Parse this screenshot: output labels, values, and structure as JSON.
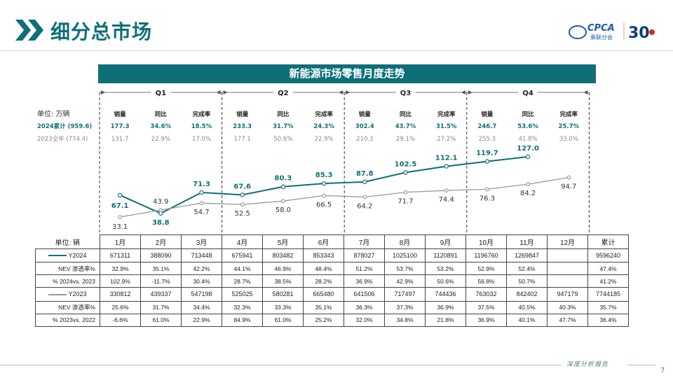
{
  "header": {
    "title": "细分总市场",
    "logo_text": "CPCA",
    "logo_subtext": "乘联分会",
    "anniversary": "30",
    "accent_color": "#0f6f78"
  },
  "chart_data": {
    "type": "line",
    "title": "新能源市场零售月度走势",
    "unit_label": "单位: 万辆",
    "categories": [
      "1月",
      "2月",
      "3月",
      "4月",
      "5月",
      "6月",
      "7月",
      "8月",
      "9月",
      "10月",
      "11月",
      "12月"
    ],
    "quarters": [
      "Q1",
      "Q2",
      "Q3",
      "Q4"
    ],
    "series": [
      {
        "name": "Y2024",
        "color": "#0f6f78",
        "values": [
          67.1,
          38.8,
          71.3,
          67.6,
          80.3,
          85.3,
          87.8,
          102.5,
          112.1,
          119.7,
          127.0,
          null
        ],
        "label_strings": [
          "67.1",
          "38.8",
          "71.3",
          "67.6",
          "80.3",
          "85.3",
          "87.8",
          "102.5",
          "112.1",
          "119.7",
          "127.0",
          ""
        ]
      },
      {
        "name": "Y2023",
        "color": "#9a9a9a",
        "values": [
          33.1,
          43.9,
          54.7,
          52.5,
          58.0,
          66.5,
          64.2,
          71.7,
          74.4,
          76.3,
          84.2,
          94.7
        ],
        "label_strings": [
          "33.1",
          "43.9",
          "54.7",
          "52.5",
          "58.0",
          "66.5",
          "64.2",
          "71.7",
          "74.4",
          "76.3",
          "84.2",
          "94.7"
        ]
      }
    ],
    "ylim": [
      20,
      140
    ],
    "grid": false,
    "quarter_stats": {
      "headers": [
        "销量",
        "同比",
        "完成率"
      ],
      "row_2024": {
        "label": "2024累计 (959.6)",
        "values": [
          [
            "177.3",
            "34.6%",
            "18.5%"
          ],
          [
            "233.3",
            "31.7%",
            "24.3%"
          ],
          [
            "302.4",
            "43.7%",
            "31.5%"
          ],
          [
            "246.7",
            "53.6%",
            "25.7%"
          ]
        ]
      },
      "row_2023": {
        "label": "2023全年 (774.4)",
        "values": [
          [
            "131.7",
            "22.9%",
            "17.0%"
          ],
          [
            "177.1",
            "50.6%",
            "22.9%"
          ],
          [
            "210.3",
            "29.1%",
            "27.2%"
          ],
          [
            "255.3",
            "41.8%",
            "33.0%"
          ]
        ]
      }
    }
  },
  "table": {
    "unit_label": "单位: 辆",
    "columns": [
      "1月",
      "2月",
      "3月",
      "4月",
      "5月",
      "6月",
      "7月",
      "8月",
      "9月",
      "10月",
      "11月",
      "12月",
      "累计"
    ],
    "groups": [
      {
        "series_label": "Y2024",
        "rows": [
          {
            "label": "",
            "cells": [
              "671311",
              "388090",
              "713448",
              "675941",
              "803482",
              "853343",
              "878027",
              "1025100",
              "1120891",
              "1196760",
              "1269847",
              "",
              "9596240"
            ]
          },
          {
            "label": "NEV 渗透率%",
            "cells": [
              "32.9%",
              "35.1%",
              "42.2%",
              "44.1%",
              "46.9%",
              "48.4%",
              "51.2%",
              "53.7%",
              "53.2%",
              "52.9%",
              "52.4%",
              "",
              "47.4%"
            ]
          },
          {
            "label": "% 2024vs. 2023",
            "cells": [
              "102.9%",
              "-11.7%",
              "30.4%",
              "28.7%",
              "38.5%",
              "28.2%",
              "36.9%",
              "42.9%",
              "50.6%",
              "56.8%",
              "50.7%",
              "",
              "41.2%"
            ]
          }
        ]
      },
      {
        "series_label": "Y2023",
        "rows": [
          {
            "label": "",
            "cells": [
              "330812",
              "439337",
              "547198",
              "525025",
              "580281",
              "665480",
              "641506",
              "717497",
              "744436",
              "763032",
              "842402",
              "947179",
              "7744185"
            ]
          },
          {
            "label": "NEV 渗透率%",
            "cells": [
              "25.6%",
              "31.7%",
              "34.4%",
              "32.3%",
              "33.3%",
              "35.1%",
              "36.3%",
              "37.3%",
              "36.9%",
              "37.5%",
              "40.5%",
              "40.3%",
              "35.7%"
            ]
          },
          {
            "label": "% 2023vs. 2022",
            "cells": [
              "-6.6%",
              "61.0%",
              "22.9%",
              "84.9%",
              "61.0%",
              "25.2%",
              "32.0%",
              "34.8%",
              "21.8%",
              "36.9%",
              "40.1%",
              "47.7%",
              "36.4%"
            ]
          }
        ]
      }
    ],
    "negative_color": "#e02020"
  },
  "footer": {
    "tagline": "深度分析报告",
    "page_number": "7"
  }
}
